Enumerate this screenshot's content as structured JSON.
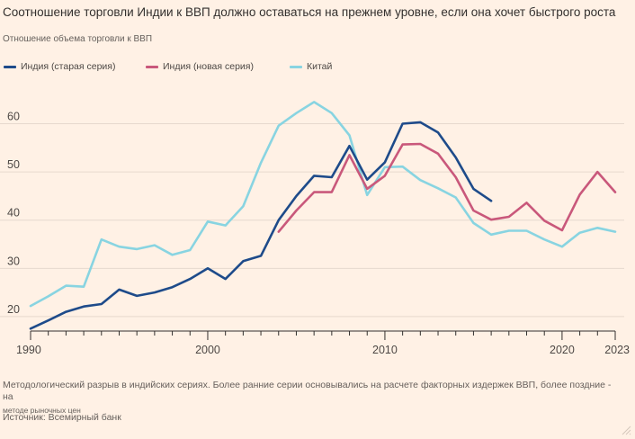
{
  "title": "Соотношение торговли Индии к ВВП должно оставаться на прежнем уровне, если она хочет быстрого роста",
  "subtitle": "Отношение объема торговли к ВВП",
  "footnote": "Методологический разрыв в индийских сериях. Более ранние серии основывались на расчете факторных издержек ВВП, более поздние - на",
  "footnote_small": "методе рыночных цен",
  "source": "Источник: Всемирный банк",
  "icons": [
    "resize-corner-icon"
  ],
  "chart_data": {
    "type": "line",
    "title": "Соотношение торговли Индии к ВВП должно оставаться на прежнем уровне, если она хочет быстрого роста",
    "xlabel": "",
    "ylabel": "Отношение объема торговли к ВВП",
    "xlim": [
      1990,
      2023
    ],
    "ylim": [
      17,
      67
    ],
    "yticks": [
      20,
      30,
      40,
      50,
      60
    ],
    "xticks": [
      1990,
      2000,
      2010,
      2020,
      2023
    ],
    "grid": true,
    "legend_position": "top-left",
    "series": [
      {
        "name": "Индия (старая серия)",
        "color": "#1e4b8a",
        "x": [
          1990,
          1991,
          1992,
          1993,
          1994,
          1995,
          1996,
          1997,
          1998,
          1999,
          2000,
          2001,
          2002,
          2003,
          2004,
          2005,
          2006,
          2007,
          2008,
          2009,
          2010,
          2011,
          2012,
          2013,
          2014,
          2015,
          2016
        ],
        "values": [
          17.5,
          19.2,
          21,
          22.1,
          22.6,
          25.6,
          24.3,
          25,
          26.1,
          27.8,
          30,
          27.8,
          31.5,
          32.6,
          40,
          45,
          49.2,
          48.9,
          55.4,
          48.4,
          52,
          60,
          60.3,
          58.2,
          53,
          46.5,
          44
        ]
      },
      {
        "name": "Индия (новая серия)",
        "color": "#c9587b",
        "x": [
          2004,
          2005,
          2006,
          2007,
          2008,
          2009,
          2010,
          2011,
          2012,
          2013,
          2014,
          2015,
          2016,
          2017,
          2018,
          2019,
          2020,
          2021,
          2022,
          2023
        ],
        "values": [
          37.6,
          42,
          45.8,
          45.8,
          53.5,
          46.5,
          49.2,
          55.7,
          55.8,
          53.8,
          48.9,
          42,
          40.1,
          40.7,
          43.6,
          39.9,
          37.9,
          45.3,
          50,
          45.8
        ]
      },
      {
        "name": "Китай",
        "color": "#88d4e1",
        "x": [
          1990,
          1991,
          1992,
          1993,
          1994,
          1995,
          1996,
          1997,
          1998,
          1999,
          2000,
          2001,
          2002,
          2003,
          2004,
          2005,
          2006,
          2007,
          2008,
          2009,
          2010,
          2011,
          2012,
          2013,
          2014,
          2015,
          2016,
          2017,
          2018,
          2019,
          2020,
          2021,
          2022,
          2023
        ],
        "values": [
          22.2,
          24.2,
          26.4,
          26.2,
          36,
          34.5,
          34,
          34.8,
          32.8,
          33.8,
          39.7,
          38.9,
          42.9,
          51.9,
          59.6,
          62.2,
          64.5,
          62.2,
          57.6,
          45.2,
          51,
          51.1,
          48.3,
          46.6,
          44.7,
          39.4,
          37,
          37.8,
          37.8,
          36,
          34.5,
          37.4,
          38.4,
          37.6
        ]
      }
    ]
  }
}
